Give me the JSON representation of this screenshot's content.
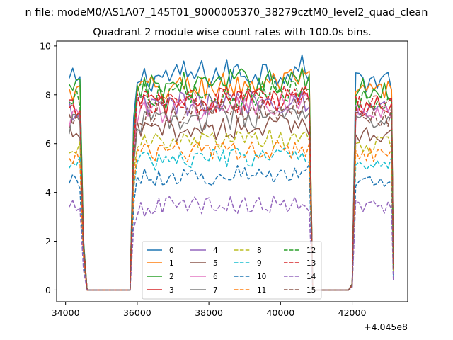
{
  "chart_data": {
    "type": "line",
    "suptitle": "n file: modeM0/AS1A07_145T01_9000005370_38279cztM0_level2_quad_clean",
    "title": "Quadrant 2 module wise count rates with 100.0s bins.",
    "xlabel": "",
    "ylabel": "",
    "x_offset_label": "+4.045e8",
    "xlim": [
      33750,
      43550
    ],
    "ylim": [
      -0.48,
      10.2
    ],
    "xticks": [
      34000,
      36000,
      38000,
      40000,
      42000
    ],
    "xtick_labels": [
      "34000",
      "36000",
      "38000",
      "40000",
      "42000"
    ],
    "yticks": [
      0,
      2,
      4,
      6,
      8,
      10
    ],
    "ytick_labels": [
      "0",
      "2",
      "4",
      "6",
      "8",
      "10"
    ],
    "grid": false,
    "legend_position": "lower-center",
    "bin_seconds": 100,
    "segments": [
      {
        "start": 34100,
        "end": 34400,
        "rise_to": 34500,
        "fall_end": 34600
      },
      {
        "start": 35800,
        "end": 40800,
        "rise_from": 35800,
        "rise_end": 36000
      },
      {
        "start": 42100,
        "end": 43100,
        "rise_from": 42000
      }
    ],
    "series": [
      {
        "name": "0",
        "color": "#1f77b4",
        "dash": "solid",
        "level": 8.7
      },
      {
        "name": "1",
        "color": "#ff7f0e",
        "dash": "solid",
        "level": 8.2
      },
      {
        "name": "2",
        "color": "#2ca02c",
        "dash": "solid",
        "level": 8.3
      },
      {
        "name": "3",
        "color": "#d62728",
        "dash": "solid",
        "level": 7.6
      },
      {
        "name": "4",
        "color": "#9467bd",
        "dash": "solid",
        "level": 7.5
      },
      {
        "name": "5",
        "color": "#8c564b",
        "dash": "solid",
        "level": 6.5
      },
      {
        "name": "6",
        "color": "#e377c2",
        "dash": "solid",
        "level": 7.3
      },
      {
        "name": "7",
        "color": "#7f7f7f",
        "dash": "solid",
        "level": 6.9
      },
      {
        "name": "8",
        "color": "#bcbd22",
        "dash": "dashed",
        "level": 6.0
      },
      {
        "name": "9",
        "color": "#17becf",
        "dash": "dashed",
        "level": 5.3
      },
      {
        "name": "10",
        "color": "#1f77b4",
        "dash": "dashed",
        "level": 4.6
      },
      {
        "name": "11",
        "color": "#ff7f0e",
        "dash": "dashed",
        "level": 5.6
      },
      {
        "name": "12",
        "color": "#2ca02c",
        "dash": "dashed",
        "level": 7.9
      },
      {
        "name": "13",
        "color": "#d62728",
        "dash": "dashed",
        "level": 7.6
      },
      {
        "name": "14",
        "color": "#9467bd",
        "dash": "dashed",
        "level": 3.4
      },
      {
        "name": "15",
        "color": "#8c564b",
        "dash": "dashed",
        "level": 7.2
      }
    ]
  }
}
